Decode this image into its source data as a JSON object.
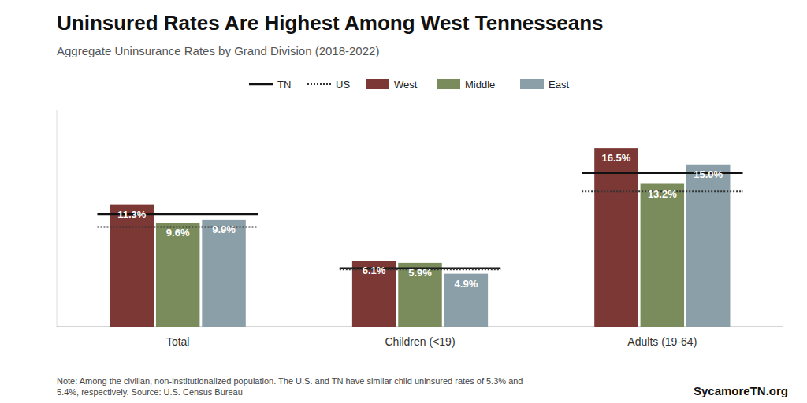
{
  "chart_data": {
    "type": "bar",
    "title": "Uninsured Rates Are Highest Among West Tennesseans",
    "subtitle": "Aggregate Uninsurance Rates by Grand Division (2018-2022)",
    "annotations": [
      "Note: Among the civilian, non-institutionalized population. The U.S. and TN have similar child uninsured rates of 5.3% and\n5.4%, respectively. Source: U.S. Census Bureau",
      "SycamoreTN.org"
    ],
    "categories": [
      "Total",
      "Children (<19)",
      "Adults (19-64)"
    ],
    "series": [
      {
        "name": "West",
        "type": "bar",
        "color": "#7B3835",
        "values": [
          11.3,
          6.1,
          16.5
        ],
        "value_labels": [
          "11.3%",
          "6.1%",
          "16.5%"
        ]
      },
      {
        "name": "Middle",
        "type": "bar",
        "color": "#7A8C5C",
        "values": [
          9.6,
          5.9,
          13.2
        ],
        "value_labels": [
          "9.6%",
          "5.9%",
          "13.2%"
        ]
      },
      {
        "name": "East",
        "type": "bar",
        "color": "#8B9FA8",
        "values": [
          9.9,
          4.9,
          15.0
        ],
        "value_labels": [
          "9.9%",
          "4.9%",
          "15.0%"
        ]
      },
      {
        "name": "TN",
        "type": "line",
        "line_style": "solid",
        "color": "#111111",
        "values": [
          10.4,
          5.4,
          14.2
        ]
      },
      {
        "name": "US",
        "type": "line",
        "line_style": "dotted",
        "color": "#333333",
        "values": [
          9.2,
          5.3,
          12.5
        ]
      }
    ],
    "ylim": [
      0,
      20
    ],
    "grid": false,
    "legend": "top",
    "data_labels": true,
    "tick_labels": "x"
  }
}
